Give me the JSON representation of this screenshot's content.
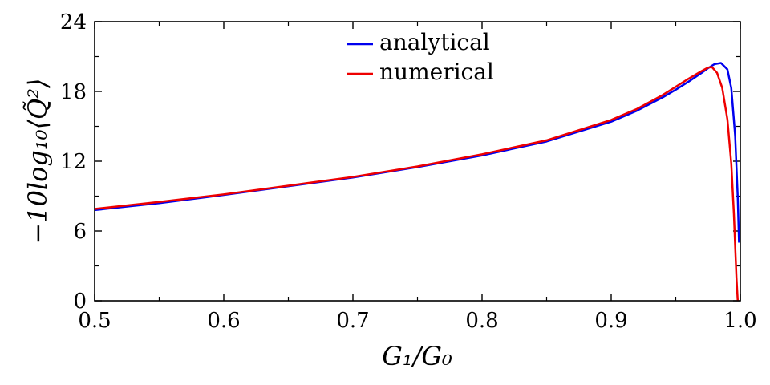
{
  "chart_data": {
    "type": "line",
    "title": "",
    "xlabel": "G₁/G₀",
    "ylabel": "−10log₁₀⟨Q̃²⟩",
    "xlim": [
      0.5,
      1.0
    ],
    "ylim": [
      0,
      24
    ],
    "x_ticks": [
      0.5,
      0.6,
      0.7,
      0.8,
      0.9,
      1.0
    ],
    "x_tick_labels": [
      "0.5",
      "0.6",
      "0.7",
      "0.8",
      "0.9",
      "1.0"
    ],
    "y_ticks": [
      0,
      6,
      12,
      18,
      24
    ],
    "y_tick_labels": [
      "0",
      "6",
      "12",
      "18",
      "24"
    ],
    "grid": false,
    "legend_position": "top-center",
    "series": [
      {
        "name": "analytical",
        "color": "#0000ee",
        "x": [
          0.5,
          0.55,
          0.6,
          0.65,
          0.7,
          0.75,
          0.8,
          0.85,
          0.9,
          0.92,
          0.94,
          0.95,
          0.96,
          0.97,
          0.975,
          0.98,
          0.985,
          0.99,
          0.993,
          0.996,
          0.998,
          0.999
        ],
        "y": [
          7.8,
          8.4,
          9.1,
          9.85,
          10.6,
          11.5,
          12.5,
          13.7,
          15.4,
          16.35,
          17.5,
          18.15,
          18.85,
          19.6,
          20.0,
          20.35,
          20.45,
          19.9,
          18.3,
          14.2,
          8.9,
          5.0
        ]
      },
      {
        "name": "numerical",
        "color": "#ee0000",
        "x": [
          0.5,
          0.55,
          0.6,
          0.65,
          0.7,
          0.75,
          0.8,
          0.85,
          0.9,
          0.92,
          0.94,
          0.95,
          0.96,
          0.97,
          0.975,
          0.978,
          0.982,
          0.986,
          0.99,
          0.993,
          0.995,
          0.997,
          0.998
        ],
        "y": [
          7.9,
          8.5,
          9.15,
          9.9,
          10.65,
          11.55,
          12.6,
          13.8,
          15.55,
          16.5,
          17.7,
          18.4,
          19.1,
          19.75,
          20.05,
          20.1,
          19.6,
          18.3,
          15.6,
          11.8,
          7.5,
          2.0,
          0.0
        ]
      }
    ]
  }
}
